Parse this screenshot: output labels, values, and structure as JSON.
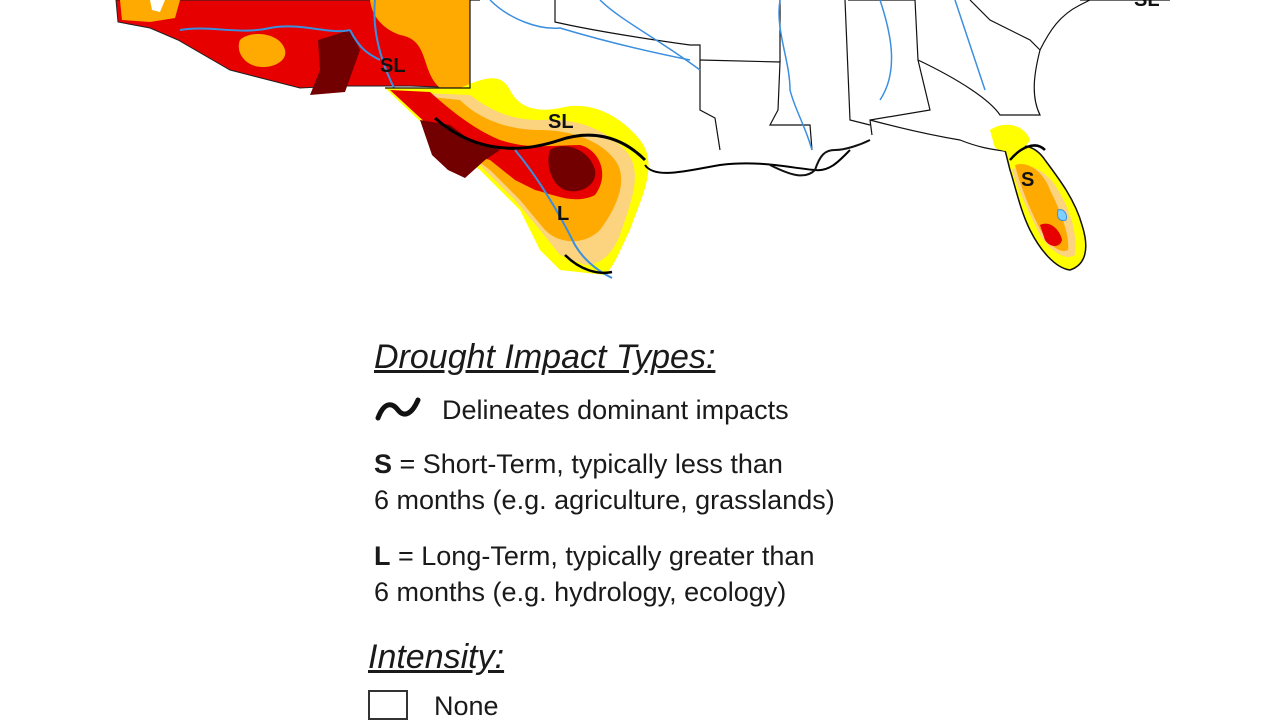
{
  "map": {
    "region_labels": [
      {
        "id": "sl-arizona-nm",
        "text": "SL"
      },
      {
        "id": "sl-texas",
        "text": "SL"
      },
      {
        "id": "l-texas",
        "text": "L"
      },
      {
        "id": "s-florida",
        "text": "S"
      },
      {
        "id": "sl-northeast",
        "text": "SL"
      }
    ],
    "colors": {
      "D0_abnormally_dry": "#ffff00",
      "D1_moderate": "#fcd37f",
      "D2_severe": "#ffaa00",
      "D3_extreme": "#e60000",
      "D4_exceptional": "#730000",
      "water": "#3a8fe0",
      "borders": "#000000"
    }
  },
  "legend": {
    "impact_types_heading": "Drought Impact Types:",
    "delineates_text": "Delineates dominant impacts",
    "short_term_key": "S",
    "short_term_line1": " = Short-Term, typically less than",
    "short_term_line2": "6 months (e.g. agriculture, grasslands)",
    "long_term_key": "L",
    "long_term_line1": " = Long-Term, typically greater than",
    "long_term_line2": "6 months (e.g. hydrology, ecology)",
    "intensity_heading": "Intensity:",
    "intensity_items": [
      {
        "label": "None",
        "color": "#ffffff"
      }
    ]
  }
}
